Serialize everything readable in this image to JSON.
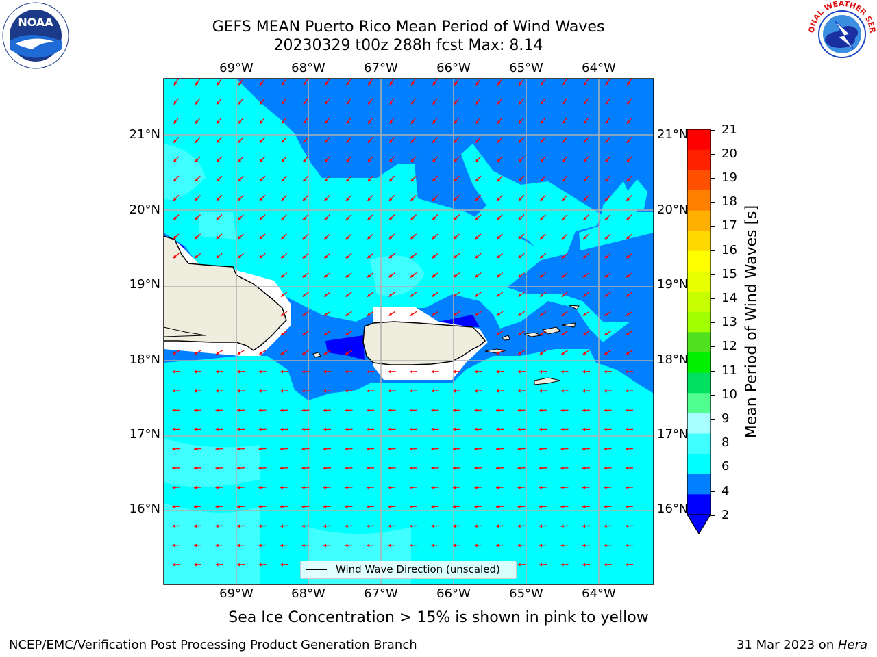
{
  "header": {
    "title_line1": "GEFS MEAN Puerto Rico Mean Period of Wind Waves",
    "title_line2": "20230329 t00z 288h fcst   Max: 8.14"
  },
  "logos": {
    "left": "NOAA",
    "left_ring_text": "NATIONAL OCEANIC AND ATMOSPHERIC ADMINISTRATION · U.S. DEPARTMENT OF COMMERCE",
    "right_ring_text": "NATIONAL WEATHER SERVICE"
  },
  "map": {
    "lon_labels": [
      "69°W",
      "68°W",
      "67°W",
      "66°W",
      "65°W",
      "64°W"
    ],
    "lat_labels": [
      "21°N",
      "20°N",
      "19°N",
      "18°N",
      "17°N",
      "16°N"
    ],
    "grid": true,
    "land_color": "#efedde",
    "arrow_color": "#ff0000",
    "region": "Puerto Rico"
  },
  "legend": {
    "label": "Wind Wave Direction (unscaled)"
  },
  "colorbar": {
    "label": "Mean Period of Wind Waves [s]",
    "ticks": [
      "21",
      "20",
      "19",
      "18",
      "17",
      "16",
      "15",
      "14",
      "13",
      "12",
      "11",
      "10",
      "9",
      "8",
      "6",
      "4",
      "2"
    ],
    "colors_top_to_bottom": [
      "#ff0000",
      "#ff2000",
      "#ff5000",
      "#ff8000",
      "#ffb000",
      "#ffd800",
      "#ffff00",
      "#e8ff00",
      "#c8ff00",
      "#a0ff00",
      "#50e020",
      "#00f000",
      "#00e060",
      "#50ff90",
      "#a8ffff",
      "#40ffff",
      "#00ffff",
      "#0080ff",
      "#0000ff"
    ]
  },
  "footer": {
    "sea_ice_note": "Sea Ice Concentration > 15% is shown in pink to yellow",
    "left": "NCEP/EMC/Verification Post Processing Product Generation Branch",
    "right_date": "31 Mar 2023 on ",
    "right_host": "Hera"
  }
}
